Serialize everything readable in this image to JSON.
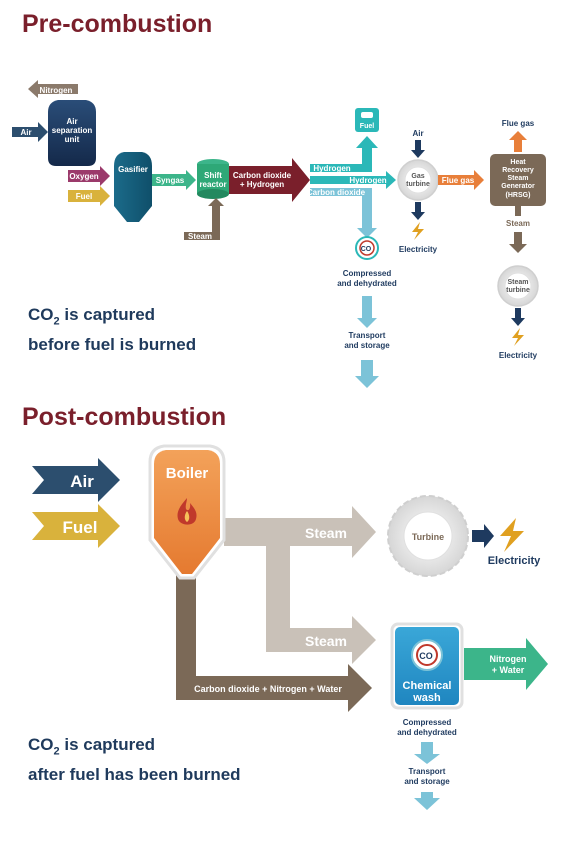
{
  "pre": {
    "title": "Pre-combustion",
    "caption": {
      "co2_main": "CO",
      "co2_sub": "2",
      "line1_rest": " is captured",
      "line2": "before fuel is burned"
    },
    "labels": {
      "nitrogen": "Nitrogen",
      "air_in": "Air",
      "asu": [
        "Air",
        "separation",
        "unit"
      ],
      "oxygen": "Oxygen",
      "fuel": "Fuel",
      "gasifier": "Gasifier",
      "syngas": "Syngas",
      "shift": [
        "Shift",
        "reactor"
      ],
      "steam_in": "Steam",
      "co2_h2": [
        "Carbon dioxide",
        "+ Hydrogen"
      ],
      "hydrogen_top": "Hydrogen",
      "hydrogen_mid": "Hydrogen",
      "carbon_dioxide": "Carbon dioxide",
      "fuel_pump": "Fuel",
      "air_top": "Air",
      "gas_turbine": [
        "Gas",
        "turbine"
      ],
      "flue_gas_arrow": "Flue gas",
      "electricity_gt": "Electricity",
      "co2_badge": "CO",
      "compressed": [
        "Compressed",
        "and dehydrated"
      ],
      "transport": [
        "Transport",
        "and storage"
      ],
      "flue_gas_top": "Flue gas",
      "hrsg": [
        "Heat",
        "Recovery",
        "Steam",
        "Generator",
        "(HRSG)"
      ],
      "steam_hrsg": "Steam",
      "steam_turbine": [
        "Steam",
        "turbine"
      ],
      "electricity_st": "Electricity"
    }
  },
  "post": {
    "title": "Post-combustion",
    "caption": {
      "co2_main": "CO",
      "co2_sub": "2",
      "line1_rest": " is captured",
      "line2": "after fuel has been burned"
    },
    "labels": {
      "air": "Air",
      "fuel": "Fuel",
      "boiler": "Boiler",
      "steam_top": "Steam",
      "steam_bottom": "Steam",
      "turbine": "Turbine",
      "electricity": "Electricity",
      "flue": "Carbon dioxide + Nitrogen + Water",
      "co2_badge": "CO",
      "chemical_wash": [
        "Chemical",
        "wash"
      ],
      "nitrogen_water": [
        "Nitrogen",
        "+ Water"
      ],
      "compressed": [
        "Compressed",
        "and dehydrated"
      ],
      "transport": [
        "Transport",
        "and storage"
      ]
    }
  },
  "colors": {
    "title": "#7a1f2b",
    "caption": "#1f3a5c",
    "navy": "#1e3a5f",
    "air_arrow": "#2c4e6e",
    "nitrogen_arrow": "#8b7a6b",
    "oxygen_arrow": "#9b3a6b",
    "fuel_arrow": "#d9b23c",
    "teal_vessel": "#1a6f8a",
    "green": "#3cb58a",
    "maroon": "#7a1f2b",
    "cyan": "#2bb8b8",
    "light_blue": "#7cc3d8",
    "orange": "#e87f3a",
    "brown": "#7b6957",
    "light_taupe": "#c9c1b8",
    "electricity": "#e0a020"
  }
}
